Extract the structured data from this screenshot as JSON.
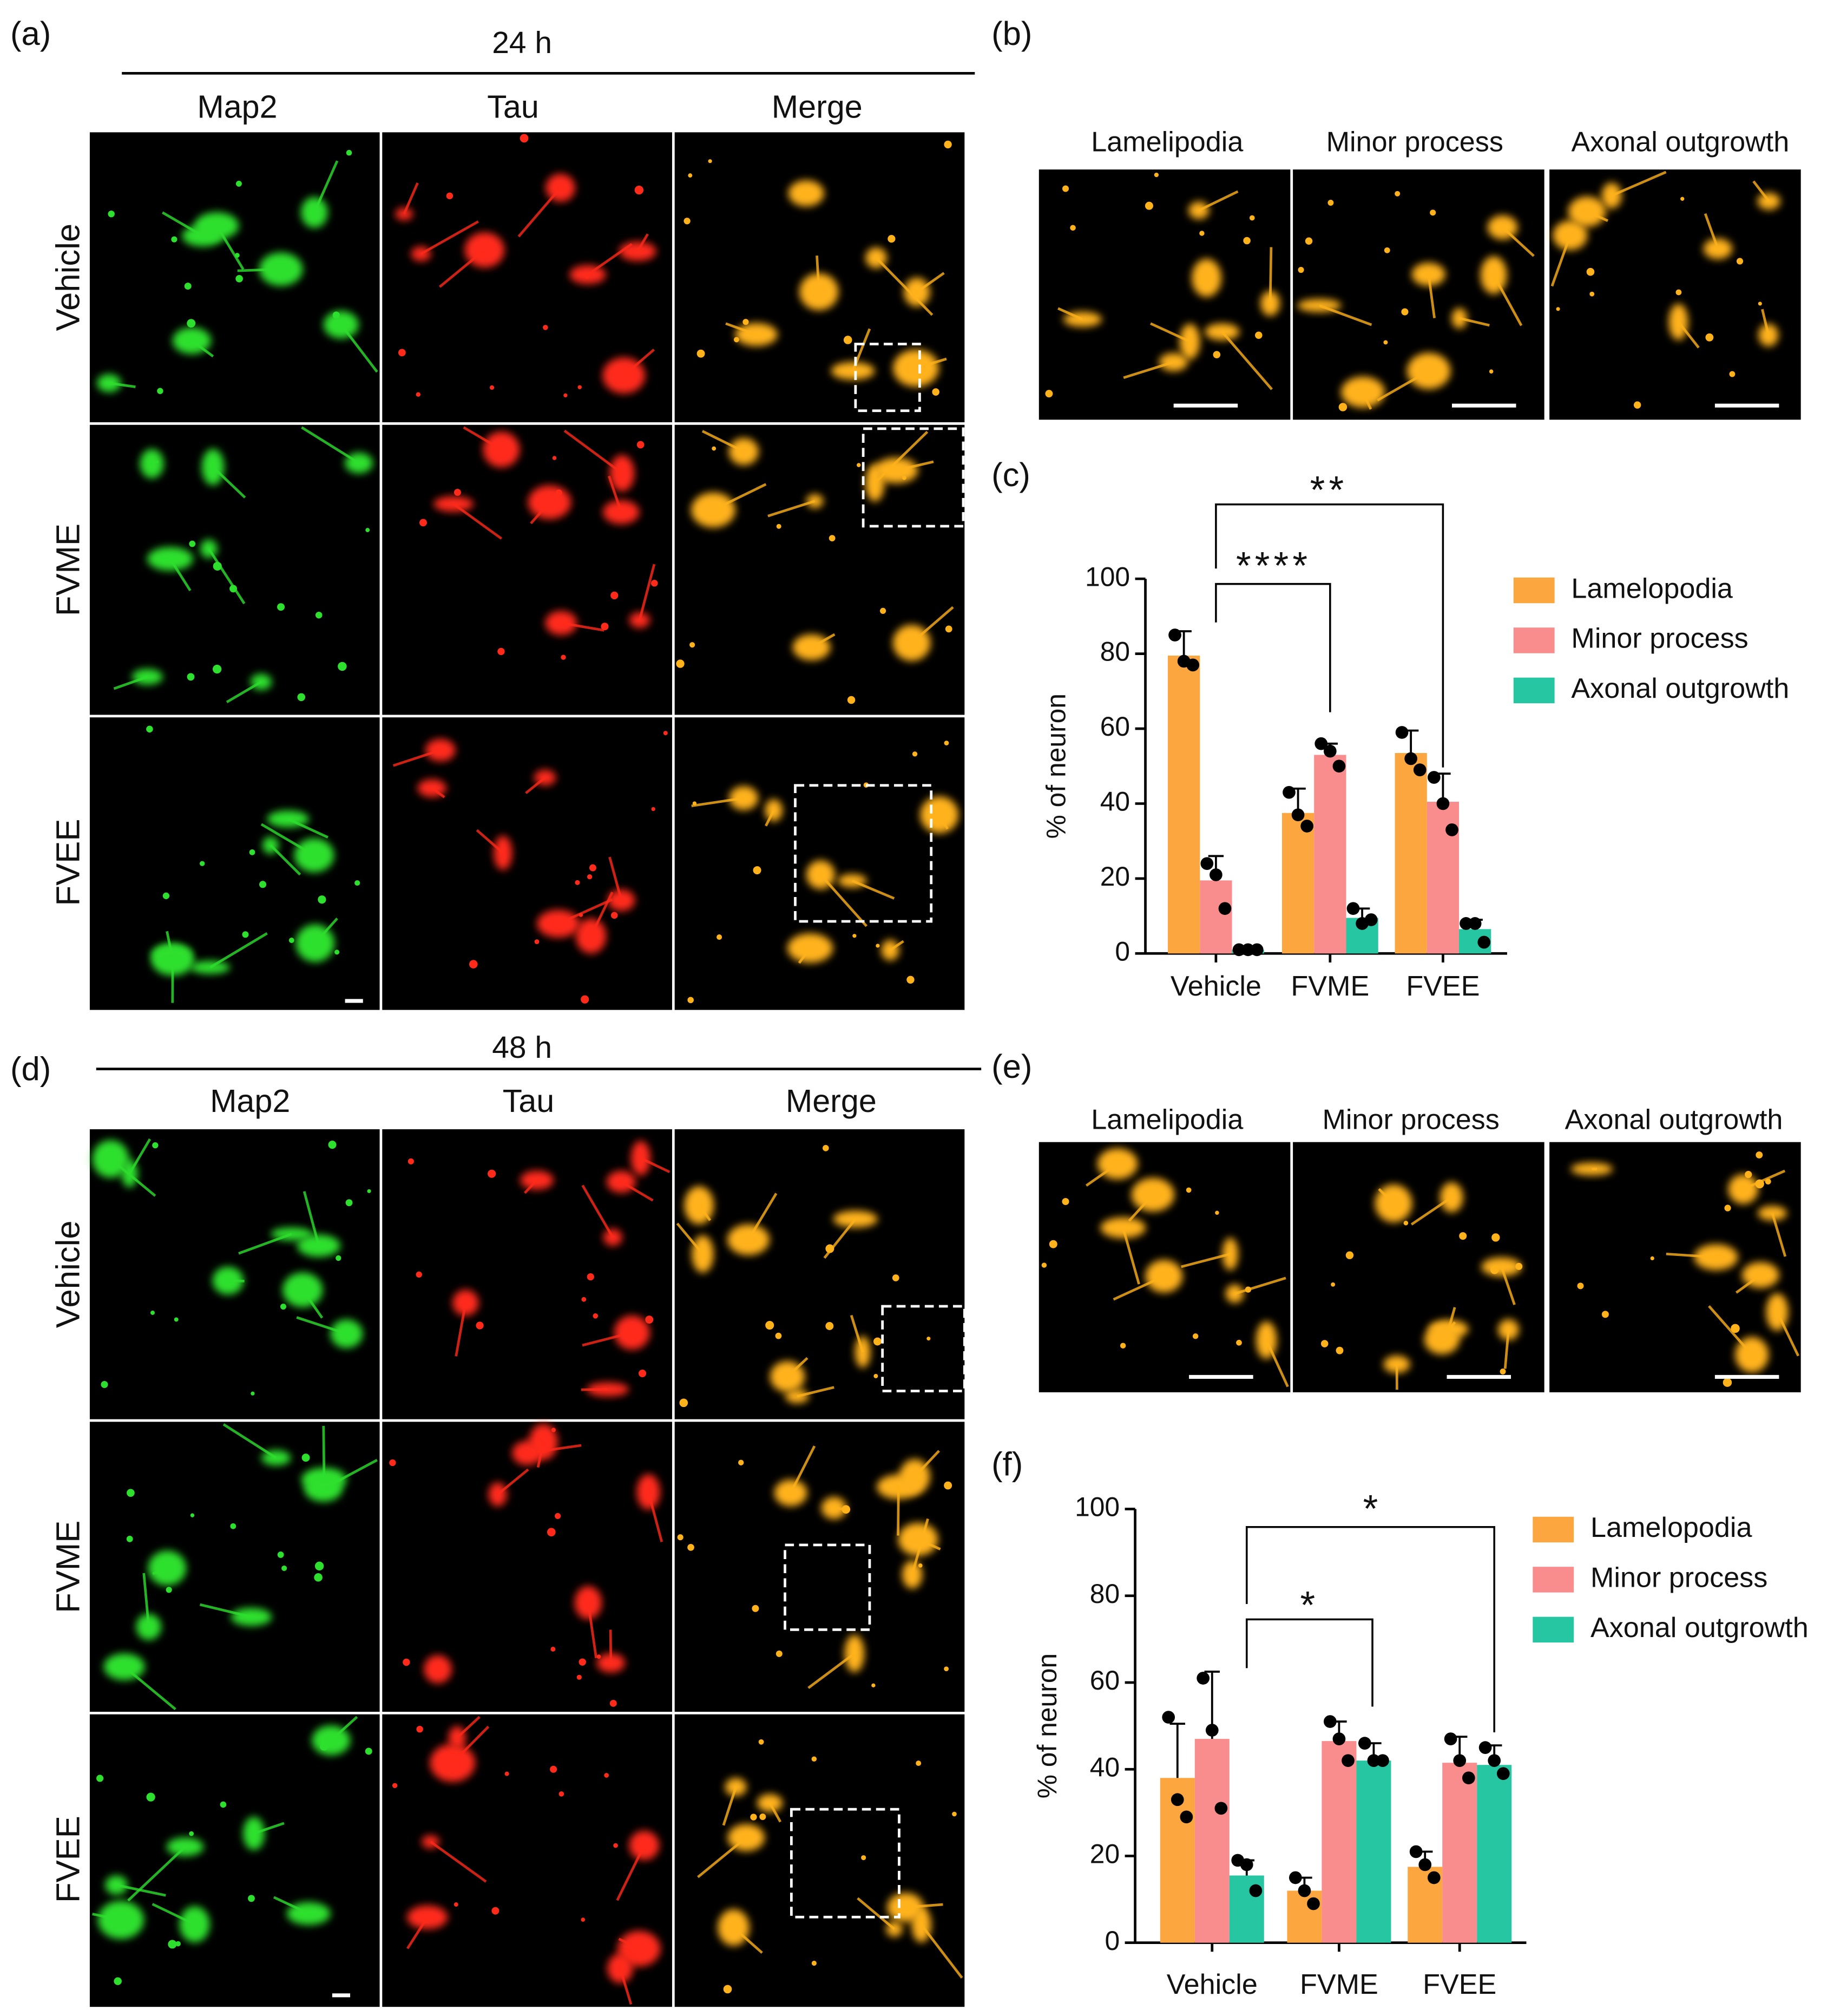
{
  "figure": {
    "panel_labels": [
      "(a)",
      "(b)",
      "(c)",
      "(d)",
      "(e)",
      "(f)"
    ],
    "top": {
      "time": "24 h",
      "columns": [
        "Map2",
        "Tau",
        "Merge"
      ],
      "rows": [
        "Vehicle",
        "FVME",
        "FVEE"
      ],
      "zoom_titles": [
        "Lamelipodia",
        "Minor process",
        "Axonal outgrowth"
      ]
    },
    "bottom": {
      "time": "48 h",
      "columns": [
        "Map2",
        "Tau",
        "Merge"
      ],
      "rows": [
        "Vehicle",
        "FVME",
        "FVEE"
      ],
      "zoom_titles": [
        "Lamelipodia",
        "Minor process",
        "Axonal outgrowth"
      ]
    }
  },
  "chart_data": [
    {
      "type": "bar",
      "ylabel": "% of neuron",
      "categories": [
        "Vehicle",
        "FVME",
        "FVEE"
      ],
      "series": [
        {
          "name": "Lamelopodia",
          "color": "#fba63f",
          "values": [
            79.5,
            37.5,
            53.5
          ],
          "errors": [
            6.5,
            6.5,
            6
          ],
          "points": [
            [
              85,
              78,
              77
            ],
            [
              43,
              37,
              34
            ],
            [
              59,
              52,
              49
            ]
          ]
        },
        {
          "name": "Minor process",
          "color": "#f98c8c",
          "values": [
            19.5,
            53,
            40.5
          ],
          "errors": [
            6.5,
            3,
            7.5
          ],
          "points": [
            [
              24,
              21,
              12
            ],
            [
              56,
              54,
              50
            ],
            [
              47,
              40,
              33
            ]
          ]
        },
        {
          "name": "Axonal outgrowth",
          "color": "#26c6a2",
          "values": [
            1,
            9.5,
            6.5
          ],
          "errors": [
            0.5,
            2.5,
            2.5
          ],
          "points": [
            [
              1,
              1,
              1
            ],
            [
              12,
              8,
              9
            ],
            [
              8,
              8,
              3
            ]
          ]
        }
      ],
      "ylim": [
        0,
        100
      ],
      "yticks": [
        0,
        20,
        40,
        60,
        80,
        100
      ],
      "legend": "right",
      "annotations": [
        "****",
        "**"
      ]
    },
    {
      "type": "bar",
      "ylabel": "% of neuron",
      "categories": [
        "Vehicle",
        "FVME",
        "FVEE"
      ],
      "series": [
        {
          "name": "Lamelopodia",
          "color": "#fba63f",
          "values": [
            38,
            12,
            17.5
          ],
          "errors": [
            12.5,
            3,
            3.5
          ],
          "points": [
            [
              52,
              33,
              29
            ],
            [
              15,
              12,
              9
            ],
            [
              21,
              18,
              15
            ]
          ]
        },
        {
          "name": "Minor process",
          "color": "#f98c8c",
          "values": [
            47,
            46.5,
            41.5
          ],
          "errors": [
            15.5,
            4.5,
            6
          ],
          "points": [
            [
              61,
              49,
              31
            ],
            [
              51,
              47,
              42
            ],
            [
              47,
              42,
              38
            ]
          ]
        },
        {
          "name": "Axonal outgrowth",
          "color": "#26c6a2",
          "values": [
            15.5,
            42,
            41
          ],
          "errors": [
            3.5,
            4,
            4.5
          ],
          "points": [
            [
              19,
              18,
              12
            ],
            [
              46,
              42,
              42
            ],
            [
              45,
              42,
              39
            ]
          ]
        }
      ],
      "ylim": [
        0,
        100
      ],
      "yticks": [
        0,
        20,
        40,
        60,
        80,
        100
      ],
      "legend": "right",
      "annotations": [
        "*",
        "*"
      ]
    }
  ]
}
